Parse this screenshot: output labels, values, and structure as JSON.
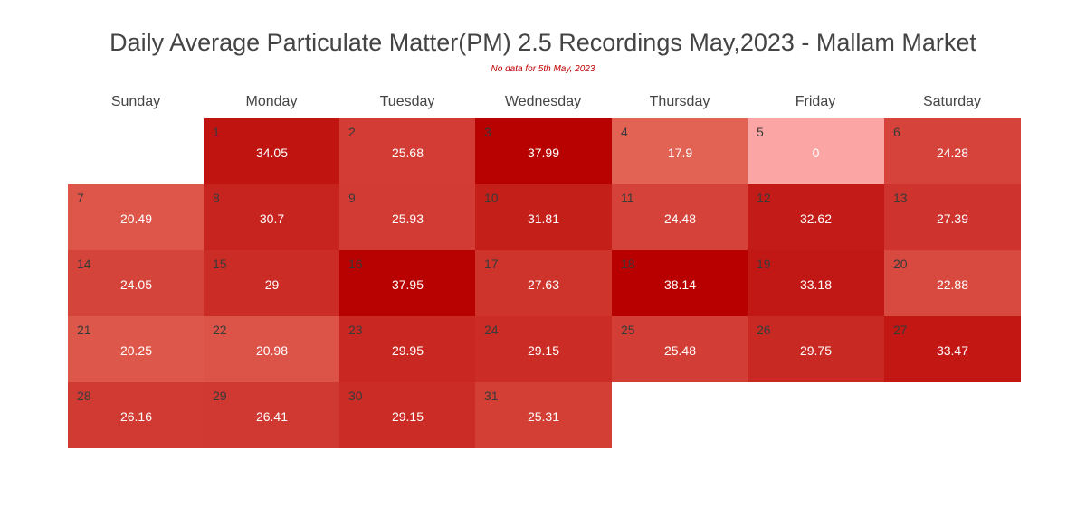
{
  "chart_data": {
    "type": "heatmap",
    "title": "Daily Average Particulate Matter(PM) 2.5 Recordings May,2023 - Mallam Market",
    "subtitle": "No data for 5th May, 2023",
    "weekdays": [
      "Sunday",
      "Monday",
      "Tuesday",
      "Wednesday",
      "Thursday",
      "Friday",
      "Saturday"
    ],
    "first_weekday_index": 1,
    "color_scale": {
      "low": "#fca5a5",
      "high": "#b80000",
      "min": 0,
      "max": 38.14
    },
    "days": [
      {
        "date": "1",
        "value": 34.05
      },
      {
        "date": "2",
        "value": 25.68
      },
      {
        "date": "3",
        "value": 37.99
      },
      {
        "date": "4",
        "value": 17.9
      },
      {
        "date": "5",
        "value": 0
      },
      {
        "date": "6",
        "value": 24.28
      },
      {
        "date": "7",
        "value": 20.49
      },
      {
        "date": "8",
        "value": 30.7
      },
      {
        "date": "9",
        "value": 25.93
      },
      {
        "date": "10",
        "value": 31.81
      },
      {
        "date": "11",
        "value": 24.48
      },
      {
        "date": "12",
        "value": 32.62
      },
      {
        "date": "13",
        "value": 27.39
      },
      {
        "date": "14",
        "value": 24.05
      },
      {
        "date": "15",
        "value": 29
      },
      {
        "date": "16",
        "value": 37.95
      },
      {
        "date": "17",
        "value": 27.63
      },
      {
        "date": "18",
        "value": 38.14
      },
      {
        "date": "19",
        "value": 33.18
      },
      {
        "date": "20",
        "value": 22.88
      },
      {
        "date": "21",
        "value": 20.25
      },
      {
        "date": "22",
        "value": 20.98
      },
      {
        "date": "23",
        "value": 29.95
      },
      {
        "date": "24",
        "value": 29.15
      },
      {
        "date": "25",
        "value": 25.48
      },
      {
        "date": "26",
        "value": 29.75
      },
      {
        "date": "27",
        "value": 33.47
      },
      {
        "date": "28",
        "value": 26.16
      },
      {
        "date": "29",
        "value": 26.41
      },
      {
        "date": "30",
        "value": 29.15
      },
      {
        "date": "31",
        "value": 25.31
      }
    ]
  }
}
